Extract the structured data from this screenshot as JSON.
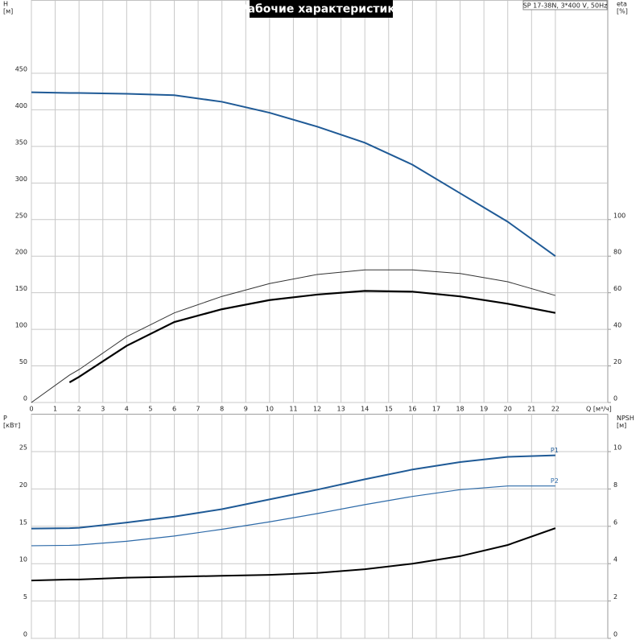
{
  "chart_data": [
    {
      "type": "line",
      "title": "Рабочие характеристики",
      "annotation": "SP 17-38N, 3*400 V, 50Hz",
      "ylabel": "H",
      "yunit": "[м]",
      "y2label": "eta",
      "y2unit": "[%]",
      "xlabel": "Q [м³/ч]",
      "x": [
        0,
        1.6,
        2,
        4,
        6,
        8,
        10,
        12,
        14,
        16,
        18,
        20,
        22
      ],
      "xlim": [
        0,
        24.2
      ],
      "xticks": [
        0,
        1,
        2,
        3,
        4,
        5,
        6,
        7,
        8,
        9,
        10,
        11,
        12,
        13,
        14,
        15,
        16,
        17,
        18,
        19,
        20,
        21,
        22
      ],
      "ylim": [
        0,
        550
      ],
      "yticks": [
        0,
        50,
        100,
        150,
        200,
        250,
        300,
        350,
        400,
        450
      ],
      "y2lim": [
        0,
        220
      ],
      "y2ticks": [
        0,
        20,
        40,
        60,
        80,
        100
      ],
      "grid": true,
      "series": [
        {
          "color": "#1f5a96",
          "width": 2,
          "values": [
            424,
            423,
            423,
            422,
            420,
            411,
            396,
            377,
            355,
            325,
            286,
            247,
            200
          ]
        },
        {
          "color": "#000000",
          "width": 2.2,
          "axis": "y2",
          "values": [
            null,
            11,
            14,
            31,
            44,
            51,
            56,
            59,
            61,
            60.6,
            58,
            54,
            49
          ]
        },
        {
          "color": "#333333",
          "width": 1,
          "axis": "y2",
          "values": [
            0,
            15,
            18,
            36,
            49,
            58,
            65,
            70,
            72.5,
            72.5,
            70.5,
            66,
            58.5
          ]
        }
      ]
    },
    {
      "type": "line",
      "ylabel": "P",
      "yunit": "[кВт]",
      "y2label": "NPSH",
      "y2unit": "[м]",
      "x": [
        0,
        1.6,
        2,
        4,
        6,
        8,
        10,
        12,
        14,
        16,
        18,
        20,
        22
      ],
      "xlim": [
        0,
        24.2
      ],
      "xticks": [
        0,
        1,
        2,
        3,
        4,
        5,
        6,
        7,
        8,
        9,
        10,
        11,
        12,
        13,
        14,
        15,
        16,
        17,
        18,
        19,
        20,
        21,
        22
      ],
      "ylim": [
        0,
        30
      ],
      "yticks": [
        0,
        5,
        10,
        15,
        20,
        25
      ],
      "y2lim": [
        0,
        12
      ],
      "y2ticks": [
        0,
        2,
        4,
        6,
        8,
        10
      ],
      "grid": true,
      "series": [
        {
          "name": "P1",
          "color": "#1f5a96",
          "width": 2,
          "values": [
            14.7,
            14.75,
            14.8,
            15.5,
            16.3,
            17.3,
            18.6,
            19.9,
            21.3,
            22.6,
            23.6,
            24.3,
            24.5
          ]
        },
        {
          "name": "P2",
          "color": "#2d6aa8",
          "width": 1.2,
          "values": [
            12.4,
            12.45,
            12.5,
            13,
            13.7,
            14.6,
            15.6,
            16.7,
            17.9,
            19,
            19.9,
            20.4,
            20.4
          ]
        },
        {
          "color": "#000000",
          "width": 2,
          "axis": "y2",
          "values": [
            3.1,
            3.15,
            3.15,
            3.25,
            3.3,
            3.35,
            3.4,
            3.5,
            3.7,
            4,
            4.4,
            5,
            5.9
          ]
        }
      ]
    }
  ]
}
